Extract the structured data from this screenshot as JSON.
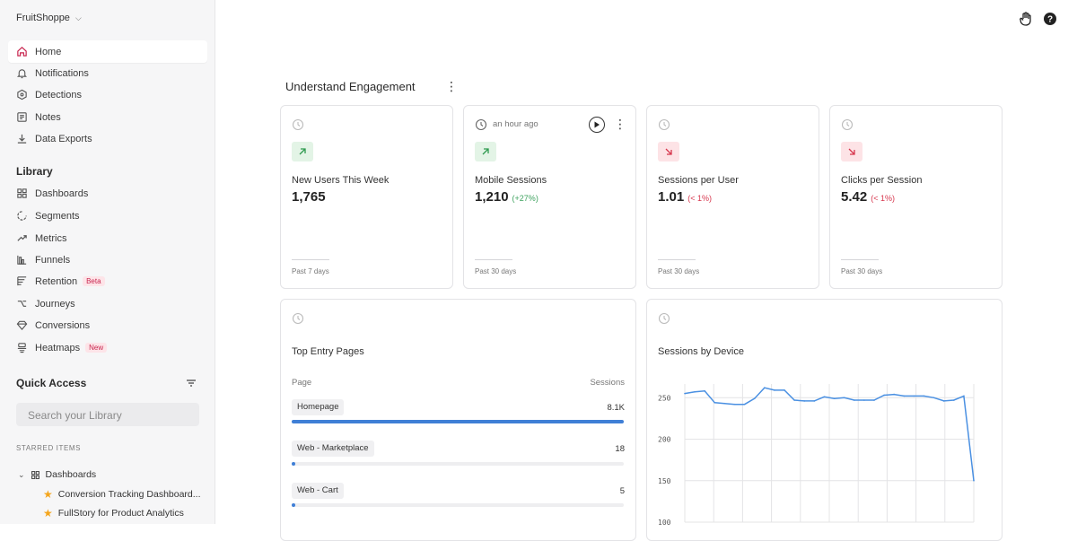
{
  "org": {
    "name": "FruitShoppe"
  },
  "nav": [
    {
      "label": "Home",
      "icon": "home-icon",
      "active": true
    },
    {
      "label": "Notifications",
      "icon": "bell-icon"
    },
    {
      "label": "Detections",
      "icon": "hexagon-icon"
    },
    {
      "label": "Notes",
      "icon": "notes-icon"
    },
    {
      "label": "Data Exports",
      "icon": "download-icon"
    }
  ],
  "library": {
    "title": "Library",
    "items": [
      {
        "label": "Dashboards",
        "icon": "grid-icon"
      },
      {
        "label": "Segments",
        "icon": "segments-icon"
      },
      {
        "label": "Metrics",
        "icon": "trend-icon"
      },
      {
        "label": "Funnels",
        "icon": "funnel-icon"
      },
      {
        "label": "Retention",
        "icon": "retention-icon",
        "badge": "Beta"
      },
      {
        "label": "Journeys",
        "icon": "journey-icon"
      },
      {
        "label": "Conversions",
        "icon": "diamond-icon"
      },
      {
        "label": "Heatmaps",
        "icon": "heatmap-icon",
        "badge": "New"
      }
    ]
  },
  "quick_access": {
    "title": "Quick Access",
    "search_placeholder": "Search your Library",
    "starred_title": "STARRED ITEMS",
    "folder": "Dashboards",
    "starred": [
      "Conversion Tracking Dashboard...",
      "FullStory for Product Analytics"
    ]
  },
  "main": {
    "title": "Understand Engagement",
    "cards": [
      {
        "title": "New Users This Week",
        "value": "1,765",
        "delta": "",
        "trend": "up",
        "period": "Past 7 days",
        "time": ""
      },
      {
        "title": "Mobile Sessions",
        "value": "1,210",
        "delta": "(+27%)",
        "trend": "up",
        "period": "Past 30 days",
        "time": "an hour ago"
      },
      {
        "title": "Sessions per User",
        "value": "1.01",
        "delta": "(< 1%)",
        "trend": "down",
        "period": "Past 30 days",
        "time": ""
      },
      {
        "title": "Clicks per Session",
        "value": "5.42",
        "delta": "(< 1%)",
        "trend": "down",
        "period": "Past 30 days",
        "time": ""
      }
    ],
    "entry_pages": {
      "title": "Top Entry Pages",
      "col_page": "Page",
      "col_sessions": "Sessions",
      "rows": [
        {
          "page": "Homepage",
          "sessions": "8.1K",
          "fraction": 1.0
        },
        {
          "page": "Web - Marketplace",
          "sessions": "18",
          "fraction": 0.01
        },
        {
          "page": "Web - Cart",
          "sessions": "5",
          "fraction": 0.01
        }
      ]
    }
  },
  "colors": {
    "accent": "#c8264f",
    "bar": "#3f7fd6",
    "line": "#4a90e2"
  },
  "chart_data": {
    "type": "line",
    "title": "Sessions by Device",
    "xlabel": "",
    "ylabel": "",
    "ylim": [
      100,
      260
    ],
    "yticks": [
      250,
      200,
      150,
      100
    ],
    "grid": true,
    "series": [
      {
        "values": [
          255,
          257,
          258,
          244,
          243,
          242,
          242,
          249,
          262,
          259,
          259,
          247,
          246,
          246,
          251,
          249,
          250,
          247,
          247,
          247,
          253,
          254,
          252,
          252,
          252,
          250,
          246,
          247,
          252,
          150
        ]
      }
    ]
  }
}
